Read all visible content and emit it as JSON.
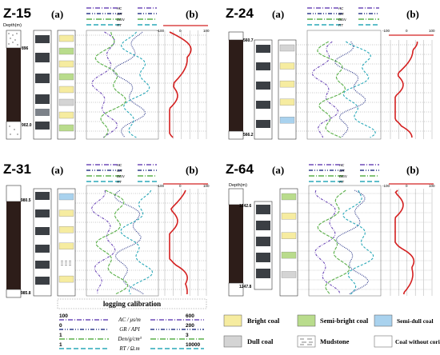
{
  "colors": {
    "bright": "#f6eca0",
    "semibright": "#b9dc8c",
    "semidull": "#a9d2ee",
    "dull": "#d4d4d4",
    "coal": "#2d1d19",
    "ac": "#6f4bb8",
    "gr": "#2f3a8a",
    "den": "#5bb04a",
    "rt": "#29a8b8",
    "curveb": "#d42020"
  },
  "panels": [
    {
      "id": "Z-15",
      "title": "Z-15",
      "label_a": "(a)",
      "label_b": "(b)",
      "depth_title": "Depth(m)",
      "depth_top": "896",
      "depth_bottom": "902.0",
      "scale_left": "-100",
      "scale_mid": "0",
      "scale_right": "100",
      "bands": [
        "bright",
        "semibright",
        "bright",
        "semibright",
        "bright",
        "dull",
        "bright",
        "semibright"
      ]
    },
    {
      "id": "Z-24",
      "title": "Z-24",
      "label_a": "(a)",
      "label_b": "(b)",
      "depth_title": "",
      "depth_top": "560.7",
      "depth_bottom": "566.2",
      "scale_left": "-100",
      "scale_mid": "0",
      "scale_right": "100",
      "bands": [
        "dull",
        "bright",
        "bright",
        "bright",
        "semidull"
      ]
    },
    {
      "id": "Z-31",
      "title": "Z-31",
      "label_a": "(a)",
      "label_b": "(b)",
      "depth_title": "",
      "depth_top": "980.5",
      "depth_bottom": "985.8",
      "scale_left": "-100",
      "scale_mid": "0",
      "scale_right": "100",
      "bands": [
        "semidull",
        "bright",
        "bright",
        "bright",
        "mud",
        "bright"
      ]
    },
    {
      "id": "Z-64",
      "title": "Z-64",
      "label_a": "(a)",
      "label_b": "(b)",
      "depth_title": "Depth(m)",
      "depth_top": "1242.6",
      "depth_bottom": "1247.8",
      "scale_left": "-100",
      "scale_mid": "0",
      "scale_right": "100",
      "bands": [
        "semibright",
        "bright",
        "bright",
        "semibright",
        "dull"
      ]
    }
  ],
  "log_labels": [
    "AC",
    "GR",
    "DEN",
    "RT"
  ],
  "calibration": {
    "title": "logging calibration",
    "rows": [
      {
        "name": "AC",
        "unit": "AC / μs/m",
        "min": "100",
        "max": "600"
      },
      {
        "name": "GR",
        "unit": "GR / API",
        "min": "0",
        "max": "200"
      },
      {
        "name": "DEN",
        "unit": "Den/g/cm³",
        "min": "1",
        "max": "3"
      },
      {
        "name": "RT",
        "unit": "RT / Ω.m",
        "min": "1",
        "max": "10000"
      }
    ]
  },
  "legend": {
    "bright": "Bright coal",
    "semibright": "Semi-bright coal",
    "semidull": "Semi-dull coal",
    "dull": "Dull coal",
    "mudstone": "Mudstone",
    "nocore": "Coal without coring"
  }
}
